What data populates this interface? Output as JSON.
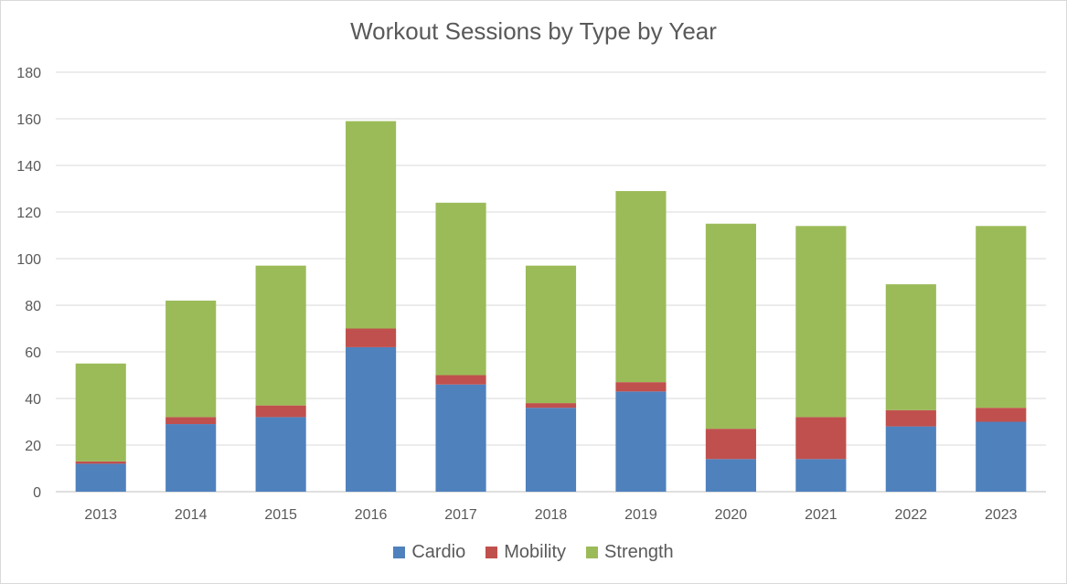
{
  "chart_data": {
    "type": "bar",
    "stacked": true,
    "title": "Workout Sessions by Type by Year",
    "xlabel": "",
    "ylabel": "",
    "categories": [
      "2013",
      "2014",
      "2015",
      "2016",
      "2017",
      "2018",
      "2019",
      "2020",
      "2021",
      "2022",
      "2023"
    ],
    "series": [
      {
        "name": "Cardio",
        "color": "#4f81bd",
        "values": [
          12,
          29,
          32,
          62,
          46,
          36,
          43,
          14,
          14,
          28,
          30
        ]
      },
      {
        "name": "Mobility",
        "color": "#c0504d",
        "values": [
          1,
          3,
          5,
          8,
          4,
          2,
          4,
          13,
          18,
          7,
          6
        ]
      },
      {
        "name": "Strength",
        "color": "#9bbb59",
        "values": [
          42,
          50,
          60,
          89,
          74,
          59,
          82,
          88,
          82,
          54,
          78
        ]
      }
    ],
    "ylim": [
      0,
      180
    ],
    "yticks": [
      "0",
      "20",
      "40",
      "60",
      "80",
      "100",
      "120",
      "140",
      "160",
      "180"
    ],
    "grid": true,
    "legend_position": "bottom"
  }
}
